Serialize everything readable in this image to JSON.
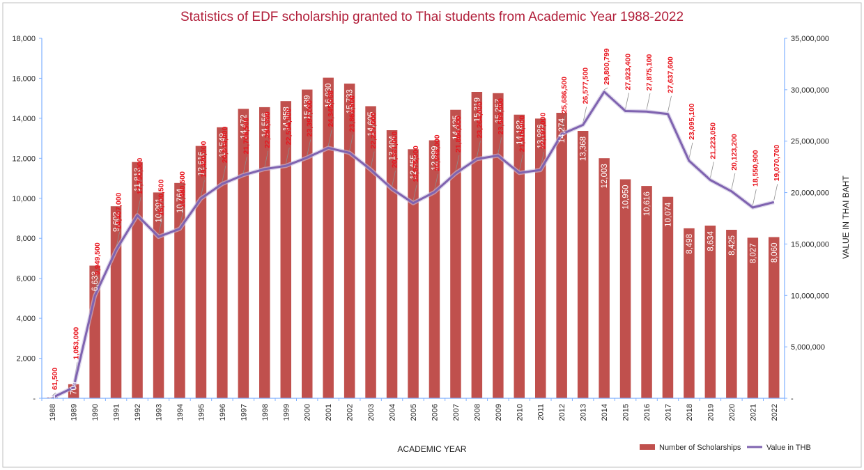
{
  "chart_data": {
    "type": "bar",
    "title": "Statistics of EDF scholarship granted to Thai students from Academic Year 1988-2022",
    "xlabel": "ACADEMIC  YEAR",
    "ylabel": "",
    "y2label": "VALUE IN THAI BAHT",
    "ylim": [
      0,
      18000
    ],
    "y2lim": [
      0,
      35000000
    ],
    "y_ticks": [
      "-",
      "2,000",
      "4,000",
      "6,000",
      "8,000",
      "10,000",
      "12,000",
      "14,000",
      "16,000",
      "18,000"
    ],
    "y2_ticks": [
      "-",
      "5,000,000",
      "10,000,000",
      "15,000,000",
      "20,000,000",
      "25,000,000",
      "30,000,000",
      "35,000,000"
    ],
    "categories": [
      "1988",
      "1989",
      "1990",
      "1991",
      "1992",
      "1993",
      "1994",
      "1995",
      "1996",
      "1997",
      "1998",
      "1999",
      "2000",
      "2001",
      "2002",
      "2003",
      "2004",
      "2005",
      "2006",
      "2007",
      "2008",
      "2009",
      "2010",
      "2011",
      "2012",
      "2013",
      "2014",
      "2015",
      "2016",
      "2017",
      "2018",
      "2019",
      "2020",
      "2021",
      "2022"
    ],
    "series": [
      {
        "name": "Number of Scholarships",
        "type": "bar",
        "axis": "left",
        "color": "#c0504d",
        "values": [
          41,
          704,
          6633,
          9602,
          11813,
          10291,
          10764,
          12616,
          13549,
          14472,
          14556,
          14858,
          15439,
          16030,
          15733,
          14605,
          13404,
          12455,
          12899,
          14425,
          15319,
          15257,
          14182,
          13986,
          14274,
          13368,
          12003,
          10950,
          10616,
          10074,
          8498,
          8634,
          8425,
          8027,
          8060
        ],
        "labels": [
          "41",
          "704",
          "6,633",
          "9,602",
          "11,813",
          "10,291",
          "10,764",
          "12,616",
          "13,549",
          "14,472",
          "14,556",
          "14,858",
          "15,439",
          "16,030",
          "15,733",
          "14,605",
          "13,404",
          "12,455",
          "12,899",
          "14,425",
          "15,319",
          "15,257",
          "14,182",
          "13,986",
          "14,274",
          "13,368",
          "12,003",
          "10,950",
          "10,616",
          "10,074",
          "8,498",
          "8,634",
          "8,425",
          "8,027",
          "8,060"
        ]
      },
      {
        "name": "Value in THB",
        "type": "line",
        "axis": "right",
        "color": "#7f63b0",
        "values": [
          61500,
          1053000,
          9949500,
          14407000,
          17790000,
          15700500,
          16480500,
          19420000,
          20844000,
          21706500,
          22284000,
          22594500,
          23397000,
          24345000,
          23863500,
          22227000,
          20361000,
          18975000,
          20046000,
          21864000,
          23264000,
          23599500,
          21915000,
          22197000,
          25686500,
          26577500,
          29800799,
          27923400,
          27875100,
          27637600,
          23095100,
          21223050,
          20123200,
          18550900,
          19070700
        ],
        "labels": [
          "61,500",
          "1,053,000",
          "9,949,500",
          "14,407,000",
          "17,790,000",
          "15,700,500",
          "16,480,500",
          "19,420,000",
          "20,844,000",
          "21,706,500",
          "22,284,000",
          "22,594,500",
          "23,397,000",
          "24,345,000",
          "23,863,500",
          "22,227,000",
          "20,361,000",
          "18,975,000",
          "20,046,000",
          "21,864,000",
          "23,264,000",
          "23,599,500",
          "21,915,000",
          "22,197,000",
          "25,686,500",
          "26,577,500",
          "29,800,799",
          "27,923,400",
          "27,875,100",
          "27,637,600",
          "23,095,100",
          "21,223,050",
          "20,123,200",
          "18,550,900",
          "19,070,700"
        ]
      }
    ],
    "legend_position": "bottom-right",
    "grid": false,
    "colors": {
      "title": "#b11f3a",
      "bar": "#c0504d",
      "line": "#7f63b0",
      "line_label": "#e8131c",
      "axis": "#7fb0ff",
      "frame": "#bfbfbf"
    }
  }
}
